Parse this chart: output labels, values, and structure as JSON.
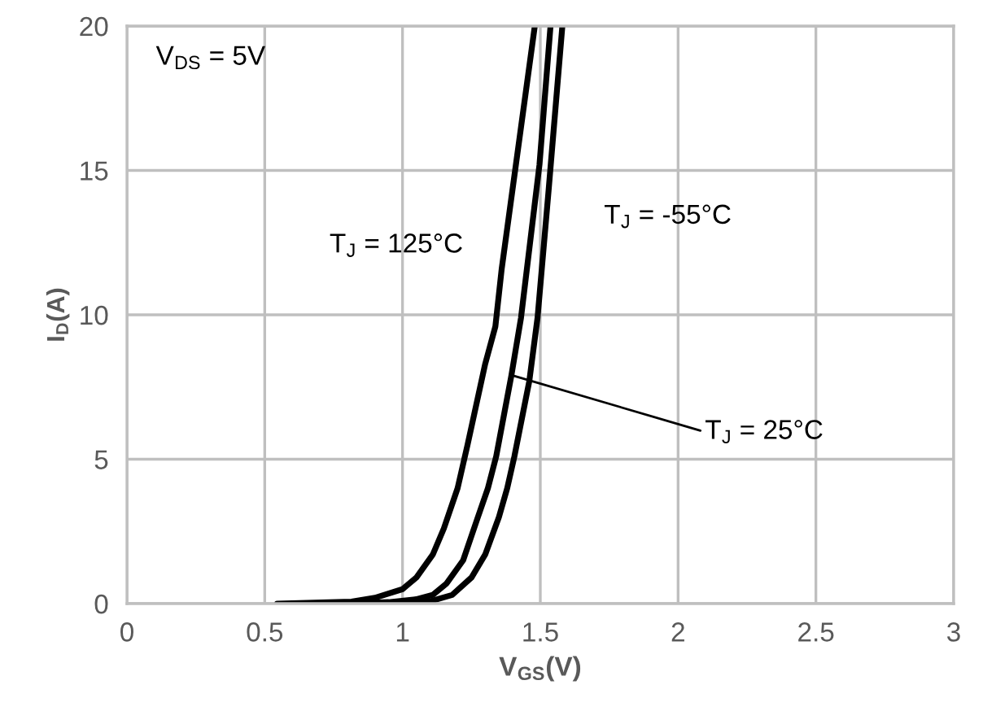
{
  "chart_data": {
    "type": "line",
    "xlabel": "V$_{GS}$(V)",
    "ylabel": "I$_{D}$(A)",
    "xlim": [
      0,
      3
    ],
    "xticks": [
      0,
      0.5,
      1,
      1.5,
      2,
      2.5,
      3
    ],
    "ylim": [
      0,
      20
    ],
    "yticks": [
      0,
      5,
      10,
      15,
      20
    ],
    "grid": true,
    "marker": "none",
    "line_style": "solid",
    "series": [
      {
        "color": "#000000",
        "x": [
          0.545,
          0.815,
          0.9,
          1.0,
          1.05,
          1.11,
          1.15,
          1.2,
          1.236,
          1.3,
          1.337,
          1.36,
          1.43,
          1.48
        ],
        "values": [
          0,
          0.07,
          0.2,
          0.5,
          0.9,
          1.7,
          2.6,
          4.0,
          5.5,
          8.3,
          9.6,
          11.6,
          16.5,
          20
        ]
      },
      {
        "color": "#000000",
        "x": [
          0.8,
          0.95,
          1.05,
          1.11,
          1.16,
          1.22,
          1.27,
          1.31,
          1.34,
          1.395,
          1.43,
          1.497,
          1.537
        ],
        "values": [
          0,
          0.05,
          0.15,
          0.3,
          0.7,
          1.5,
          2.9,
          4.0,
          5.1,
          7.9,
          9.9,
          15.2,
          20
        ]
      },
      {
        "color": "#000000",
        "x": [
          0.95,
          1.1,
          1.18,
          1.25,
          1.3,
          1.35,
          1.38,
          1.406,
          1.46,
          1.49,
          1.53,
          1.58
        ],
        "values": [
          0,
          0.08,
          0.3,
          0.9,
          1.7,
          3.0,
          4.0,
          5.1,
          7.7,
          9.9,
          14.3,
          20
        ]
      }
    ],
    "annotations": [
      "V$_{DS}$ = 5V",
      "T$_{J}$ = 125°C",
      "T$_{J}$ = -55°C",
      {
        "text": "T$_{J}$ = 25°C",
        "x": 1.4,
        "y": 7.9
      }
    ]
  }
}
